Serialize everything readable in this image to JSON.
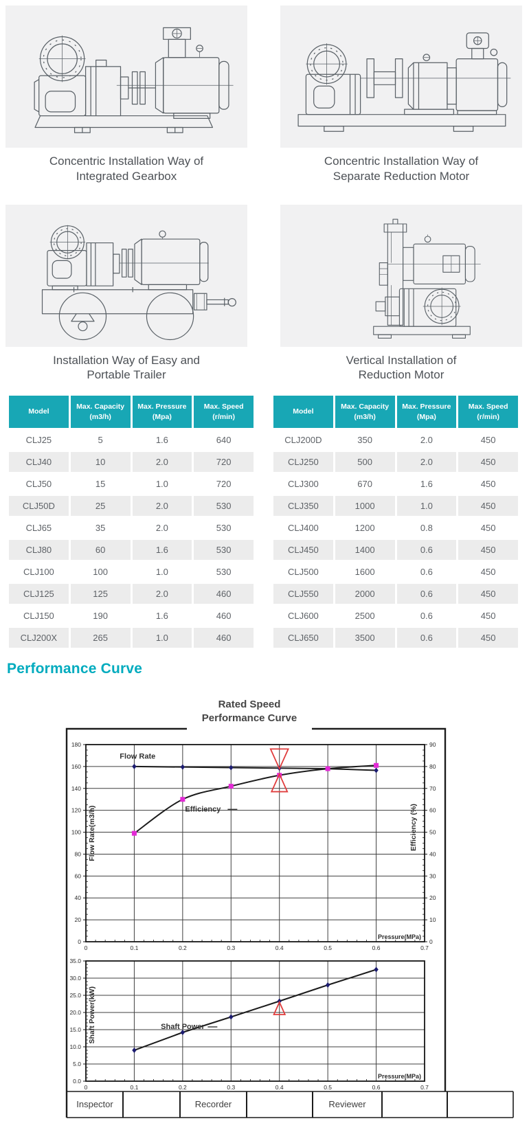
{
  "figures": [
    {
      "icon": "integrated-gearbox-pump-drawing",
      "caption_line1": "Concentric Installation Way of",
      "caption_line2": "Integrated Gearbox"
    },
    {
      "icon": "separate-reduction-motor-pump-drawing",
      "caption_line1": "Concentric Installation Way of",
      "caption_line2": "Separate Reduction Motor"
    },
    {
      "icon": "portable-trailer-pump-drawing",
      "caption_line1": "Installation Way of Easy and",
      "caption_line2": "Portable Trailer"
    },
    {
      "icon": "vertical-reduction-motor-pump-drawing",
      "caption_line1": "Vertical Installation of",
      "caption_line2": "Reduction Motor"
    }
  ],
  "spec_tables": {
    "headers": [
      {
        "label": "Model",
        "sub": ""
      },
      {
        "label": "Max. Capacity",
        "sub": "(m3/h)"
      },
      {
        "label": "Max. Pressure",
        "sub": "(Mpa)"
      },
      {
        "label": "Max. Speed",
        "sub": "(r/min)"
      }
    ],
    "left_rows": [
      [
        "CLJ25",
        "5",
        "1.6",
        "640"
      ],
      [
        "CLJ40",
        "10",
        "2.0",
        "720"
      ],
      [
        "CLJ50",
        "15",
        "1.0",
        "720"
      ],
      [
        "CLJ50D",
        "25",
        "2.0",
        "530"
      ],
      [
        "CLJ65",
        "35",
        "2.0",
        "530"
      ],
      [
        "CLJ80",
        "60",
        "1.6",
        "530"
      ],
      [
        "CLJ100",
        "100",
        "1.0",
        "530"
      ],
      [
        "CLJ125",
        "125",
        "2.0",
        "460"
      ],
      [
        "CLJ150",
        "190",
        "1.6",
        "460"
      ],
      [
        "CLJ200X",
        "265",
        "1.0",
        "460"
      ]
    ],
    "right_rows": [
      [
        "CLJ200D",
        "350",
        "2.0",
        "450"
      ],
      [
        "CLJ250",
        "500",
        "2.0",
        "450"
      ],
      [
        "CLJ300",
        "670",
        "1.6",
        "450"
      ],
      [
        "CLJ350",
        "1000",
        "1.0",
        "450"
      ],
      [
        "CLJ400",
        "1200",
        "0.8",
        "450"
      ],
      [
        "CLJ450",
        "1400",
        "0.6",
        "450"
      ],
      [
        "CLJ500",
        "1600",
        "0.6",
        "450"
      ],
      [
        "CLJ550",
        "2000",
        "0.6",
        "450"
      ],
      [
        "CLJ600",
        "2500",
        "0.6",
        "450"
      ],
      [
        "CLJ650",
        "3500",
        "0.6",
        "450"
      ]
    ]
  },
  "performance": {
    "section_title": "Performance Curve",
    "chart_title_line1": "Rated Speed",
    "chart_title_line2": "Performance  Curve",
    "footer_cells": [
      "Inspector",
      "",
      "Recorder",
      "",
      "Reviewer",
      "",
      ""
    ]
  },
  "colors": {
    "table_header_teal": "#18a7b5",
    "section_heading_teal": "#00abbe",
    "row_alt_gray": "#ececec",
    "flow_marker_navy": "#1c1c70",
    "efficiency_marker_magenta": "#e32ad6",
    "red_annotation": "#e03c3c",
    "chart_line": "#1b1b1b"
  },
  "chart_data": [
    {
      "type": "line",
      "title": "Rated Speed Performance Curve",
      "xlabel": "Pressure(MPa)",
      "ylabel_left": "Flow Rate(m3/h)",
      "ylabel_right": "Efficiency (%)",
      "xlim": [
        0,
        0.7
      ],
      "ylim_left": [
        0,
        180
      ],
      "ylim_right": [
        0,
        90
      ],
      "grid": true,
      "x_ticks": [
        0,
        0.1,
        0.2,
        0.3,
        0.4,
        0.5,
        0.6,
        0.7
      ],
      "x_tick_labels": [
        "0",
        "0.1",
        "0.2",
        "0.3",
        "0.4",
        "0.5",
        "0.6",
        "0.7"
      ],
      "y_ticks_left": [
        0,
        20,
        40,
        60,
        80,
        100,
        120,
        140,
        160,
        180
      ],
      "y_tick_labels_left": [
        "0",
        "20",
        "40",
        "60",
        "80",
        "100",
        "120",
        "140",
        "160",
        "180"
      ],
      "y_ticks_right": [
        0,
        10,
        20,
        30,
        40,
        50,
        60,
        70,
        80,
        90
      ],
      "y_tick_labels_right": [
        "0",
        "10",
        "20",
        "30",
        "40",
        "50",
        "60",
        "70",
        "80",
        "90"
      ],
      "x_minor": 0.02,
      "y_minor_left": 5,
      "y_minor_right": 2.5,
      "series": [
        {
          "name": "Flow Rate",
          "axis": "left",
          "marker": "diamond",
          "marker_color": "#1c1c70",
          "smooth": false,
          "x": [
            0.1,
            0.2,
            0.3,
            0.4,
            0.5,
            0.6
          ],
          "values": [
            160,
            159.5,
            159,
            158.5,
            158,
            156.5
          ]
        },
        {
          "name": "Efficiency",
          "axis": "right",
          "marker": "square",
          "marker_color": "#e32ad6",
          "smooth": true,
          "x": [
            0.1,
            0.2,
            0.3,
            0.4,
            0.5,
            0.6
          ],
          "values": [
            49.5,
            65,
            71,
            76,
            79,
            80.5
          ]
        }
      ],
      "annotations": [
        {
          "text": "Flow Rate",
          "x": 0.07,
          "y": 167,
          "axis": "left",
          "leader": false
        },
        {
          "text": "Efficiency",
          "x": 0.205,
          "y": 119,
          "axis": "left",
          "leader": true
        }
      ],
      "red_markers": [
        {
          "shape": "triangle-down",
          "x": 0.4,
          "y_base": 176,
          "y_apex": 158,
          "axis": "left"
        },
        {
          "shape": "triangle-up",
          "x": 0.4,
          "y_base": 137,
          "y_apex": 153,
          "axis": "left"
        }
      ]
    },
    {
      "type": "line",
      "title": "Shaft Power vs Pressure",
      "xlabel": "Pressure(MPa)",
      "ylabel_left": "Shaft Power(kW)",
      "xlim": [
        0,
        0.7
      ],
      "ylim_left": [
        0,
        35
      ],
      "grid": true,
      "x_ticks": [
        0,
        0.1,
        0.2,
        0.3,
        0.4,
        0.5,
        0.6,
        0.7
      ],
      "x_tick_labels": [
        "0",
        "0.1",
        "0.2",
        "0.3",
        "0.4",
        "0.5",
        "0.6",
        "0.7"
      ],
      "y_ticks_left": [
        0,
        5,
        10,
        15,
        20,
        25,
        30,
        35
      ],
      "y_tick_labels_left": [
        "0.0",
        "5.0",
        "10.0",
        "15.0",
        "20.0",
        "25.0",
        "30.0",
        "35.0"
      ],
      "x_minor": 0.02,
      "y_minor_left": 1,
      "series": [
        {
          "name": "Shaft Power",
          "axis": "left",
          "marker": "diamond",
          "marker_color": "#1c1c70",
          "smooth": false,
          "x": [
            0.1,
            0.2,
            0.3,
            0.4,
            0.5,
            0.6
          ],
          "values": [
            9,
            14.2,
            18.7,
            23.3,
            28,
            32.5
          ]
        }
      ],
      "annotations": [
        {
          "text": "Shaft Power",
          "x": 0.155,
          "y": 15.2,
          "axis": "left",
          "leader": true
        }
      ],
      "red_markers": [
        {
          "shape": "triangle-up",
          "x": 0.4,
          "y_base": 19.4,
          "y_apex": 23,
          "axis": "left"
        }
      ]
    }
  ]
}
